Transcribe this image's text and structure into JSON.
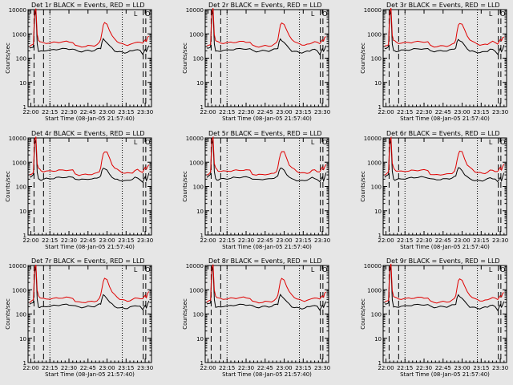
{
  "colors": {
    "background": "#e6e6e6",
    "events": "#000000",
    "lld": "#e00000"
  },
  "chart_data": [
    {
      "type": "line",
      "title": "Det 1r BLACK = Events, RED = LLD",
      "xlabel": "Start Time (08-Jan-05 21:57:40)",
      "ylabel": "Counts/sec",
      "yscale": "log",
      "ylim": [
        1,
        10000
      ],
      "x_ticks": [
        "22:00",
        "22:15",
        "22:30",
        "22:45",
        "23:00",
        "23:15",
        "23:30"
      ],
      "y_ticks": [
        "1",
        "10",
        "100",
        "1000",
        "10000"
      ],
      "series": [
        {
          "name": "BLACK = Events",
          "variant": 1
        },
        {
          "name": "RED = LLD",
          "variant": 1
        }
      ]
    },
    {
      "type": "line",
      "title": "Det 2r BLACK = Events, RED = LLD",
      "xlabel": "Start Time (08-Jan-05 21:57:40)",
      "ylabel": "Counts/sec",
      "yscale": "log",
      "ylim": [
        1,
        10000
      ],
      "x_ticks": [
        "22:00",
        "22:15",
        "22:30",
        "22:45",
        "23:00",
        "23:15",
        "23:30"
      ],
      "y_ticks": [
        "1",
        "10",
        "100",
        "1000",
        "10000"
      ],
      "series": [
        {
          "name": "BLACK = Events",
          "variant": 2
        },
        {
          "name": "RED = LLD",
          "variant": 2
        }
      ]
    },
    {
      "type": "line",
      "title": "Det 3r BLACK = Events, RED = LLD",
      "xlabel": "Start Time (08-Jan-05 21:57:40)",
      "ylabel": "Counts/sec",
      "yscale": "log",
      "ylim": [
        1,
        10000
      ],
      "x_ticks": [
        "22:00",
        "22:15",
        "22:30",
        "22:45",
        "23:00",
        "23:15",
        "23:30"
      ],
      "y_ticks": [
        "1",
        "10",
        "100",
        "1000",
        "10000"
      ],
      "series": [
        {
          "name": "BLACK = Events",
          "variant": 3
        },
        {
          "name": "RED = LLD",
          "variant": 3
        }
      ]
    },
    {
      "type": "line",
      "title": "Det 4r BLACK = Events, RED = LLD",
      "xlabel": "Start Time (08-Jan-05 21:57:40)",
      "ylabel": "Counts/sec",
      "yscale": "log",
      "ylim": [
        1,
        10000
      ],
      "x_ticks": [
        "22:00",
        "22:15",
        "22:30",
        "22:45",
        "23:00",
        "23:15",
        "23:30"
      ],
      "y_ticks": [
        "1",
        "10",
        "100",
        "1000",
        "10000"
      ],
      "series": [
        {
          "name": "BLACK = Events",
          "variant": 4
        },
        {
          "name": "RED = LLD",
          "variant": 4
        }
      ]
    },
    {
      "type": "line",
      "title": "Det 5r BLACK = Events, RED = LLD",
      "xlabel": "Start Time (08-Jan-05 21:57:40)",
      "ylabel": "Counts/sec",
      "yscale": "log",
      "ylim": [
        1,
        10000
      ],
      "x_ticks": [
        "22:00",
        "22:15",
        "22:30",
        "22:45",
        "23:00",
        "23:15",
        "23:30"
      ],
      "y_ticks": [
        "1",
        "10",
        "100",
        "1000",
        "10000"
      ],
      "series": [
        {
          "name": "BLACK = Events",
          "variant": 5
        },
        {
          "name": "RED = LLD",
          "variant": 5
        }
      ]
    },
    {
      "type": "line",
      "title": "Det 6r BLACK = Events, RED = LLD",
      "xlabel": "Start Time (08-Jan-05 21:57:40)",
      "ylabel": "Counts/sec",
      "yscale": "log",
      "ylim": [
        1,
        10000
      ],
      "x_ticks": [
        "22:00",
        "22:15",
        "22:30",
        "22:45",
        "23:00",
        "23:15",
        "23:30"
      ],
      "y_ticks": [
        "1",
        "10",
        "100",
        "1000",
        "10000"
      ],
      "series": [
        {
          "name": "BLACK = Events",
          "variant": 6
        },
        {
          "name": "RED = LLD",
          "variant": 6
        }
      ]
    },
    {
      "type": "line",
      "title": "Det 7r BLACK = Events, RED = LLD",
      "xlabel": "Start Time (08-Jan-05 21:57:40)",
      "ylabel": "Counts/sec",
      "yscale": "log",
      "ylim": [
        1,
        10000
      ],
      "x_ticks": [
        "22:00",
        "22:15",
        "22:30",
        "22:45",
        "23:00",
        "23:15",
        "23:30"
      ],
      "y_ticks": [
        "1",
        "10",
        "100",
        "1000",
        "10000"
      ],
      "series": [
        {
          "name": "BLACK = Events",
          "variant": 7
        },
        {
          "name": "RED = LLD",
          "variant": 7
        }
      ]
    },
    {
      "type": "line",
      "title": "Det 8r BLACK = Events, RED = LLD",
      "xlabel": "Start Time (08-Jan-05 21:57:40)",
      "ylabel": "Counts/sec",
      "yscale": "log",
      "ylim": [
        1,
        10000
      ],
      "x_ticks": [
        "22:00",
        "22:15",
        "22:30",
        "22:45",
        "23:00",
        "23:15",
        "23:30"
      ],
      "y_ticks": [
        "1",
        "10",
        "100",
        "1000",
        "10000"
      ],
      "series": [
        {
          "name": "BLACK = Events",
          "variant": 8
        },
        {
          "name": "RED = LLD",
          "variant": 8
        }
      ]
    },
    {
      "type": "line",
      "title": "Det 9r BLACK = Events, RED = LLD",
      "xlabel": "Start Time (08-Jan-05 21:57:40)",
      "ylabel": "Counts/sec",
      "yscale": "log",
      "ylim": [
        1,
        10000
      ],
      "x_ticks": [
        "22:00",
        "22:15",
        "22:30",
        "22:45",
        "23:00",
        "23:15",
        "23:30"
      ],
      "y_ticks": [
        "1",
        "10",
        "100",
        "1000",
        "10000"
      ],
      "series": [
        {
          "name": "BLACK = Events",
          "variant": 9
        },
        {
          "name": "RED = LLD",
          "variant": 9
        }
      ]
    }
  ],
  "shared_series": {
    "x_minutes_after_2200": [
      -1,
      0,
      2,
      3,
      4,
      5,
      6,
      7,
      8,
      10,
      12,
      15,
      18,
      20,
      22,
      25,
      28,
      30,
      33,
      35,
      38,
      40,
      43,
      45,
      48,
      50,
      52,
      54,
      55,
      56,
      57,
      58,
      60,
      62,
      64,
      66,
      68,
      70,
      72,
      74,
      76,
      78,
      80,
      82,
      84,
      86,
      88,
      90,
      91,
      92,
      93
    ],
    "events": [
      250,
      260,
      300,
      5200,
      9000,
      400,
      200,
      190,
      190,
      200,
      210,
      210,
      220,
      230,
      235,
      240,
      245,
      240,
      235,
      210,
      190,
      190,
      200,
      205,
      200,
      210,
      230,
      250,
      260,
      450,
      600,
      550,
      450,
      320,
      250,
      200,
      190,
      180,
      175,
      170,
      175,
      190,
      200,
      230,
      220,
      200,
      150,
      240,
      180,
      250,
      350
    ],
    "lld": [
      310,
      320,
      380,
      8000,
      11000,
      900,
      560,
      500,
      450,
      420,
      420,
      430,
      440,
      450,
      460,
      470,
      480,
      470,
      460,
      330,
      300,
      300,
      310,
      320,
      320,
      330,
      360,
      430,
      600,
      1200,
      2200,
      2800,
      2600,
      1400,
      800,
      600,
      500,
      420,
      380,
      360,
      350,
      360,
      380,
      450,
      480,
      430,
      400,
      600,
      500,
      700,
      800
    ]
  },
  "markers": {
    "dashed_minutes": [
      2.5,
      10,
      88.5,
      90.5
    ],
    "dotted_minutes": [
      15,
      72
    ],
    "corner_labels": [
      "L",
      "O"
    ]
  }
}
